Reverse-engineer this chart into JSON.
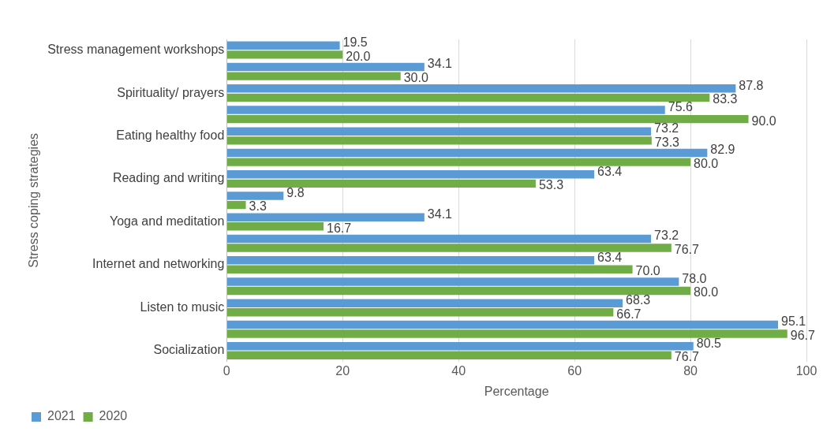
{
  "chart_data": {
    "type": "bar",
    "orientation": "horizontal",
    "xlabel": "Percentage",
    "ylabel": "Stress coping strategies",
    "categories": [
      "Stress management workshops",
      null,
      "Spirituality/ prayers",
      null,
      "Eating healthy food",
      null,
      "Reading and writing",
      null,
      "Yoga and meditation",
      null,
      "Internet and networking",
      null,
      "Listen to music",
      null,
      "Socialization"
    ],
    "series": [
      {
        "name": "2021",
        "color": "#5b9bd5",
        "values": [
          19.5,
          34.1,
          87.8,
          75.6,
          73.2,
          82.9,
          63.4,
          9.8,
          34.1,
          73.2,
          63.4,
          78.0,
          68.3,
          95.1,
          80.5
        ],
        "value_labels": [
          "19.5",
          "34.1",
          "87.8",
          "75.6",
          "73.2",
          "82.9",
          "63.4",
          "9.8",
          "34.1",
          "73.2",
          "63.4",
          "78.0",
          "68.3",
          "95.1",
          "80.5"
        ]
      },
      {
        "name": "2020",
        "color": "#70ad47",
        "values": [
          20.0,
          30.0,
          83.3,
          90.0,
          73.3,
          80.0,
          53.3,
          3.3,
          16.7,
          76.7,
          70.0,
          80.0,
          66.7,
          96.7,
          76.7
        ],
        "value_labels": [
          "20.0",
          "30.0",
          "83.3",
          "90.0",
          "73.3",
          "80.0",
          "53.3",
          "3.3",
          "16.7",
          "76.7",
          "70.0",
          "80.0",
          "66.7",
          "96.7",
          "76.7"
        ]
      }
    ],
    "xlim": [
      0,
      100
    ],
    "xticks": [
      0,
      20,
      40,
      60,
      80,
      100
    ],
    "grid": "x",
    "legend": "bottom left"
  }
}
